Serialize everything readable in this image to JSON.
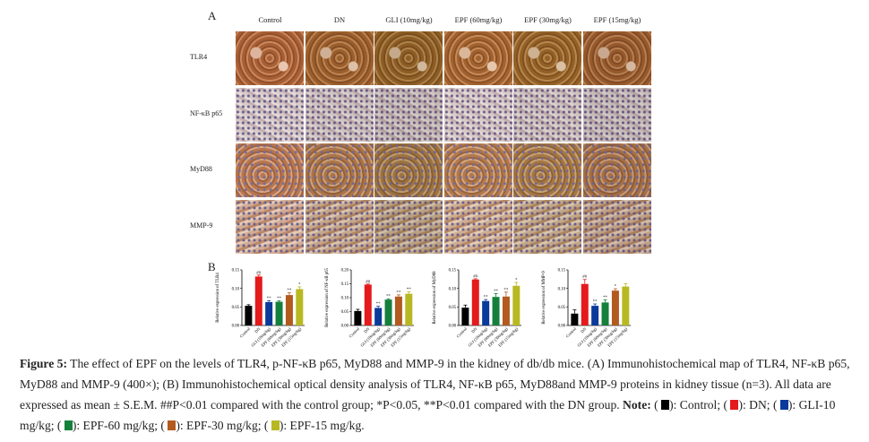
{
  "panel_a": {
    "letter": "A",
    "columns": [
      "Control",
      "DN",
      "GLI (10mg/kg)",
      "EPF (60mg/kg)",
      "EPF (30mg/kg)",
      "EPF (15mg/kg)"
    ],
    "rows": [
      "TLR4",
      "NF-κB p65",
      "MyD88",
      "MMP-9"
    ]
  },
  "panel_b": {
    "letter": "B"
  },
  "colors": {
    "Control": "#000000",
    "DN": "#e41a1c",
    "GLI": "#0a3a9a",
    "EPF60": "#14803c",
    "EPF30": "#b35a1f",
    "EPF15": "#b8b822"
  },
  "chart_data": [
    {
      "type": "bar",
      "ylabel": "Relative expression of TLR4",
      "categories": [
        "Control",
        "DN",
        "GLI (10mg/kg)",
        "EPF (60mg/kg)",
        "EPF (30mg/kg)",
        "EPF (15mg/kg)"
      ],
      "values": [
        0.053,
        0.132,
        0.063,
        0.064,
        0.082,
        0.098
      ],
      "errors": [
        0.003,
        0.004,
        0.004,
        0.003,
        0.006,
        0.006
      ],
      "significance": [
        "",
        "##",
        "**",
        "**",
        "**",
        "*"
      ],
      "ylim": [
        0,
        0.15
      ],
      "yticks": [
        "0.00",
        "0.05",
        "0.10",
        "0.15"
      ]
    },
    {
      "type": "bar",
      "ylabel": "Relative expression of NF-κB p65",
      "categories": [
        "Control",
        "DN",
        "GLI (10mg/kg)",
        "EPF (60mg/kg)",
        "EPF (30mg/kg)",
        "EPF (15mg/kg)"
      ],
      "values": [
        0.052,
        0.147,
        0.063,
        0.093,
        0.104,
        0.114
      ],
      "errors": [
        0.006,
        0.002,
        0.006,
        0.003,
        0.006,
        0.007
      ],
      "significance": [
        "",
        "##",
        "**",
        "**",
        "**",
        "**"
      ],
      "ylim": [
        0,
        0.2
      ],
      "yticks": [
        "0.00",
        "0.05",
        "0.10",
        "0.15",
        "0.20"
      ]
    },
    {
      "type": "bar",
      "ylabel": "Relative expression of MyD88",
      "categories": [
        "Control",
        "DN",
        "GLI (10mg/kg)",
        "EPF (60mg/kg)",
        "EPF (30mg/kg)",
        "EPF (15mg/kg)"
      ],
      "values": [
        0.048,
        0.124,
        0.066,
        0.077,
        0.078,
        0.107
      ],
      "errors": [
        0.007,
        0.002,
        0.004,
        0.009,
        0.012,
        0.009
      ],
      "significance": [
        "",
        "##",
        "**",
        "**",
        "**",
        "*"
      ],
      "ylim": [
        0,
        0.15
      ],
      "yticks": [
        "0.00",
        "0.05",
        "0.10",
        "0.15"
      ]
    },
    {
      "type": "bar",
      "ylabel": "Relative expression of MMP-9",
      "categories": [
        "Control",
        "DN",
        "GLI (10mg/kg)",
        "EPF (60mg/kg)",
        "EPF (30mg/kg)",
        "EPF (15mg/kg)"
      ],
      "values": [
        0.032,
        0.112,
        0.053,
        0.062,
        0.094,
        0.105
      ],
      "errors": [
        0.01,
        0.012,
        0.005,
        0.007,
        0.005,
        0.008
      ],
      "significance": [
        "",
        "##",
        "**",
        "**",
        "*",
        ""
      ],
      "ylim": [
        0,
        0.15
      ],
      "yticks": [
        "0.00",
        "0.05",
        "0.10",
        "0.15"
      ]
    }
  ],
  "caption": {
    "label": "Figure 5:",
    "text1": " The effect of EPF on the levels of TLR4, p-NF-κB p65, MyD88 and MMP-9 in the kidney of db/db mice. (A) Immunohistochemical map of TLR4, NF-κB p65, MyD88 and MMP-9 (400×); (B) Immunohistochemical optical density analysis of TLR4, NF-κB p65, MyD88and MMP-9 proteins in kidney tissue (n=3). All data are expressed as mean ± S.E.M. ##P<0.01 compared with the control group; *P<0.05, **P<0.01 compared with the DN group. ",
    "note_label": "Note:",
    "legend": [
      "): Control; (",
      "): DN; (",
      "): GLI-10 mg/kg; (",
      "): EPF-60 mg/kg; (",
      "): EPF-30 mg/kg;  (",
      "): EPF-15 mg/kg."
    ]
  }
}
